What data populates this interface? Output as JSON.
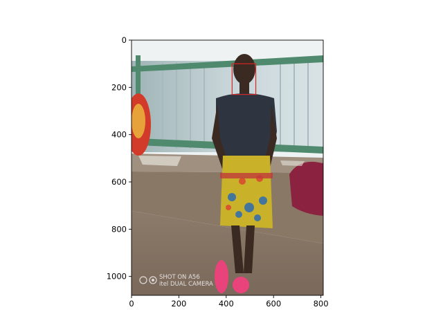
{
  "chart_data": {
    "type": "image",
    "title": "",
    "xlabel": "",
    "ylabel": "",
    "xlim": [
      0,
      810
    ],
    "ylim": [
      1080,
      0
    ],
    "x_ticks": [
      0,
      200,
      400,
      600,
      800
    ],
    "y_ticks": [
      0,
      200,
      400,
      600,
      800,
      1000
    ],
    "image": {
      "width": 810,
      "height": 1080,
      "watermark_lines": [
        "SHOT ON A56",
        "itel DUAL CAMERA"
      ]
    },
    "annotations": [
      {
        "type": "bounding-box",
        "label": "face",
        "x0": 425,
        "y0": 100,
        "x1": 525,
        "y1": 230,
        "color": "#d62728"
      }
    ],
    "grid": false,
    "legend": "none"
  },
  "colors": {
    "box": "#d62728",
    "axes": "#000000"
  }
}
